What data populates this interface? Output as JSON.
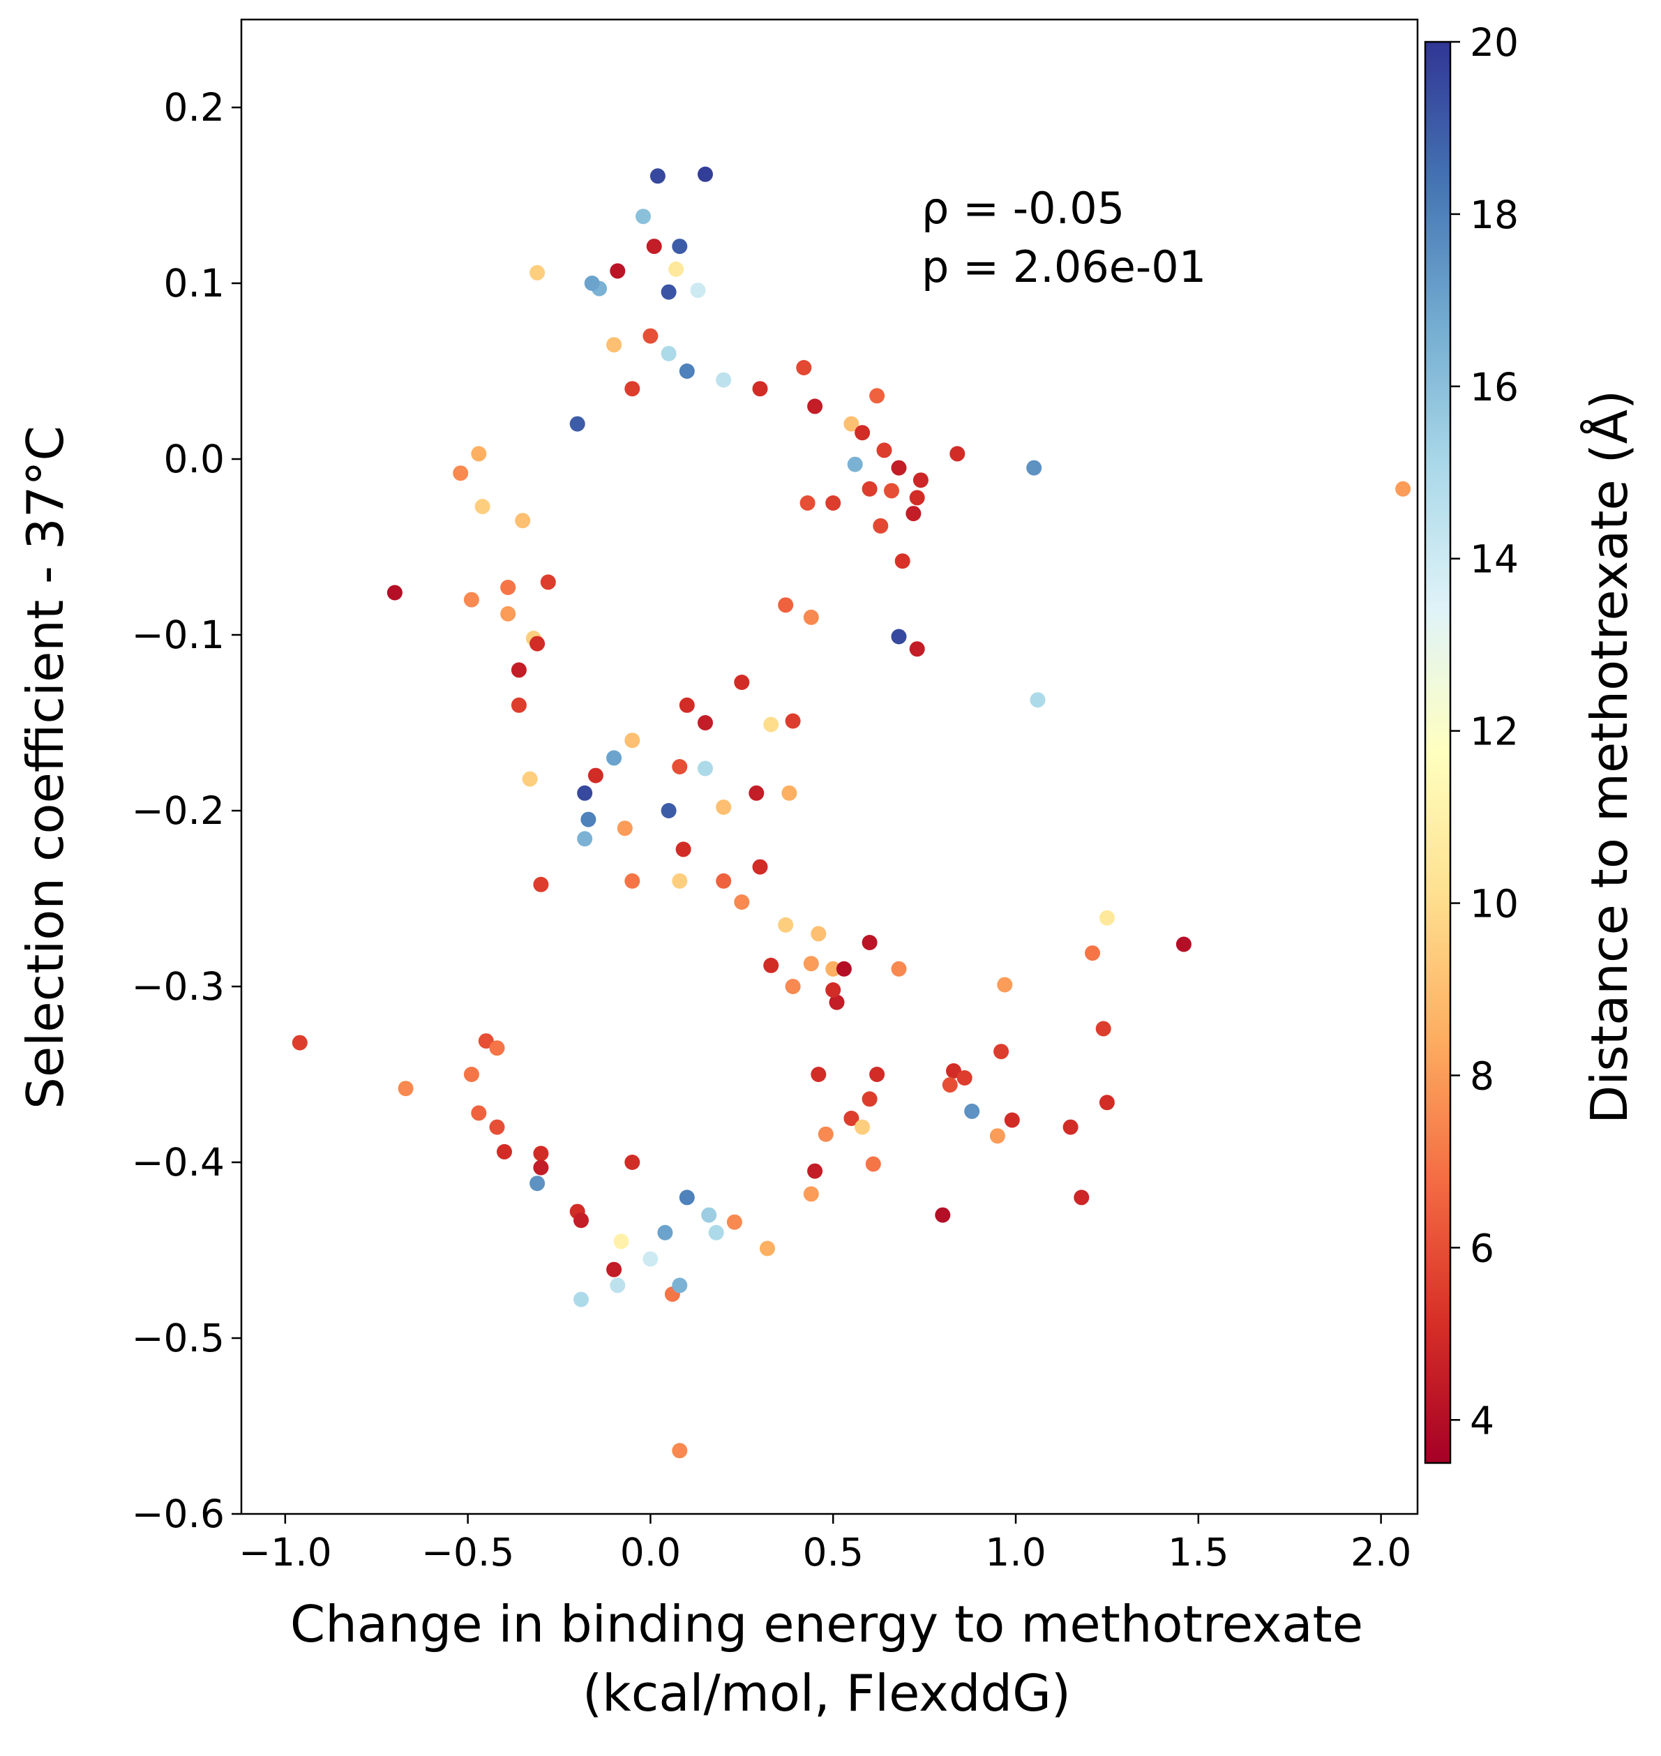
{
  "chart_data": {
    "type": "scatter",
    "xlabel": [
      "Change in binding energy to methotrexate",
      "(kcal/mol, FlexddG)"
    ],
    "ylabel": "Selection coefficient - 37°C",
    "xlim": [
      -1.12,
      2.1
    ],
    "ylim": [
      -0.6,
      0.25
    ],
    "xticks": [
      -1.0,
      -0.5,
      0.0,
      0.5,
      1.0,
      1.5,
      2.0
    ],
    "xtick_labels": [
      "−1.0",
      "−0.5",
      "0.0",
      "0.5",
      "1.0",
      "1.5",
      "2.0"
    ],
    "yticks": [
      -0.6,
      -0.5,
      -0.4,
      -0.3,
      -0.2,
      -0.1,
      0.0,
      0.1,
      0.2
    ],
    "ytick_labels": [
      "−0.6",
      "−0.5",
      "−0.4",
      "−0.3",
      "−0.2",
      "−0.1",
      "0.0",
      "0.1",
      "0.2"
    ],
    "grid": false,
    "annotations": {
      "rho": "ρ = -0.05",
      "p": "p = 2.06e-01"
    },
    "colorbar": {
      "label": "Distance to methotrexate (Å)",
      "colormap": "RdYlBu",
      "range": [
        3.5,
        20
      ],
      "ticks": [
        4,
        6,
        8,
        10,
        12,
        14,
        16,
        18,
        20
      ],
      "tick_labels": [
        "4",
        "6",
        "8",
        "10",
        "12",
        "14",
        "16",
        "18",
        "20"
      ]
    },
    "points": [
      [
        0.02,
        0.161,
        19.5
      ],
      [
        0.15,
        0.162,
        19.8
      ],
      [
        -0.02,
        0.138,
        16.0
      ],
      [
        0.01,
        0.121,
        4.5
      ],
      [
        0.08,
        0.121,
        19.0
      ],
      [
        -0.31,
        0.106,
        9.5
      ],
      [
        -0.09,
        0.107,
        4.2
      ],
      [
        0.07,
        0.108,
        10.5
      ],
      [
        -0.14,
        0.097,
        16.5
      ],
      [
        0.05,
        0.095,
        19.2
      ],
      [
        0.13,
        0.096,
        14.0
      ],
      [
        -0.16,
        0.1,
        17.0
      ],
      [
        0.0,
        0.07,
        6.0
      ],
      [
        0.05,
        0.06,
        15.0
      ],
      [
        -0.1,
        0.065,
        9.0
      ],
      [
        0.1,
        0.05,
        18.0
      ],
      [
        -0.05,
        0.04,
        5.5
      ],
      [
        0.2,
        0.045,
        14.5
      ],
      [
        0.3,
        0.04,
        5.0
      ],
      [
        -0.2,
        0.02,
        19.0
      ],
      [
        0.42,
        0.052,
        5.8
      ],
      [
        0.45,
        0.03,
        4.5
      ],
      [
        0.62,
        0.036,
        6.5
      ],
      [
        0.55,
        0.02,
        9.0
      ],
      [
        0.58,
        0.015,
        5.0
      ],
      [
        0.64,
        0.005,
        5.5
      ],
      [
        0.68,
        -0.005,
        4.5
      ],
      [
        0.56,
        -0.003,
        16.5
      ],
      [
        0.84,
        0.003,
        5.0
      ],
      [
        1.05,
        -0.005,
        17.5
      ],
      [
        2.06,
        -0.017,
        8.0
      ],
      [
        0.74,
        -0.012,
        4.8
      ],
      [
        0.6,
        -0.017,
        5.5
      ],
      [
        0.66,
        -0.018,
        6.0
      ],
      [
        0.73,
        -0.022,
        5.0
      ],
      [
        0.5,
        -0.025,
        5.5
      ],
      [
        0.43,
        -0.025,
        6.0
      ],
      [
        0.72,
        -0.031,
        4.5
      ],
      [
        0.63,
        -0.038,
        5.8
      ],
      [
        0.69,
        -0.058,
        5.2
      ],
      [
        -0.52,
        -0.008,
        7.5
      ],
      [
        -0.47,
        0.003,
        8.5
      ],
      [
        -0.46,
        -0.027,
        9.5
      ],
      [
        -0.35,
        -0.035,
        9.0
      ],
      [
        -0.7,
        -0.076,
        4.0
      ],
      [
        -0.49,
        -0.08,
        7.5
      ],
      [
        -0.39,
        -0.073,
        7.0
      ],
      [
        -0.39,
        -0.088,
        8.0
      ],
      [
        -0.28,
        -0.07,
        5.5
      ],
      [
        -0.32,
        -0.102,
        9.5
      ],
      [
        -0.31,
        -0.105,
        5.0
      ],
      [
        -0.36,
        -0.12,
        4.5
      ],
      [
        -0.36,
        -0.14,
        5.5
      ],
      [
        -0.33,
        -0.182,
        9.5
      ],
      [
        0.68,
        -0.101,
        19.5
      ],
      [
        0.73,
        -0.108,
        4.5
      ],
      [
        1.06,
        -0.137,
        15.0
      ],
      [
        0.37,
        -0.083,
        6.5
      ],
      [
        0.44,
        -0.09,
        7.5
      ],
      [
        0.25,
        -0.127,
        5.0
      ],
      [
        0.33,
        -0.151,
        10.0
      ],
      [
        0.39,
        -0.149,
        5.5
      ],
      [
        0.29,
        -0.19,
        4.5
      ],
      [
        0.38,
        -0.19,
        8.5
      ],
      [
        0.3,
        -0.232,
        5.0
      ],
      [
        0.2,
        -0.198,
        9.0
      ],
      [
        -0.3,
        -0.242,
        5.5
      ],
      [
        0.25,
        -0.252,
        7.5
      ],
      [
        -0.15,
        -0.18,
        5.0
      ],
      [
        -0.18,
        -0.19,
        19.5
      ],
      [
        -0.17,
        -0.205,
        18.0
      ],
      [
        -0.18,
        -0.216,
        16.5
      ],
      [
        -0.1,
        -0.17,
        17.0
      ],
      [
        -0.05,
        -0.16,
        9.0
      ],
      [
        0.1,
        -0.14,
        5.0
      ],
      [
        0.15,
        -0.15,
        4.5
      ],
      [
        0.08,
        -0.175,
        6.0
      ],
      [
        0.15,
        -0.176,
        15.0
      ],
      [
        0.05,
        -0.2,
        19.0
      ],
      [
        -0.07,
        -0.21,
        8.0
      ],
      [
        0.08,
        -0.24,
        9.5
      ],
      [
        0.09,
        -0.222,
        5.0
      ],
      [
        -0.05,
        -0.24,
        7.0
      ],
      [
        0.2,
        -0.24,
        6.5
      ],
      [
        0.6,
        -0.275,
        4.2
      ],
      [
        0.37,
        -0.265,
        9.5
      ],
      [
        0.46,
        -0.27,
        9.0
      ],
      [
        0.33,
        -0.288,
        5.0
      ],
      [
        0.39,
        -0.3,
        7.5
      ],
      [
        0.44,
        -0.287,
        8.0
      ],
      [
        0.5,
        -0.29,
        8.5
      ],
      [
        0.51,
        -0.309,
        4.5
      ],
      [
        0.5,
        -0.302,
        5.0
      ],
      [
        0.53,
        -0.29,
        4.0
      ],
      [
        0.68,
        -0.29,
        7.5
      ],
      [
        0.97,
        -0.299,
        8.0
      ],
      [
        1.25,
        -0.261,
        10.5
      ],
      [
        1.21,
        -0.281,
        7.0
      ],
      [
        1.46,
        -0.276,
        4.0
      ],
      [
        1.24,
        -0.324,
        5.5
      ],
      [
        1.25,
        -0.366,
        5.0
      ],
      [
        1.15,
        -0.38,
        5.0
      ],
      [
        1.18,
        -0.42,
        4.8
      ],
      [
        0.8,
        -0.43,
        4.0
      ],
      [
        0.88,
        -0.371,
        17.5
      ],
      [
        0.83,
        -0.348,
        5.0
      ],
      [
        0.86,
        -0.352,
        5.5
      ],
      [
        0.82,
        -0.356,
        6.0
      ],
      [
        0.96,
        -0.337,
        5.5
      ],
      [
        0.99,
        -0.376,
        5.0
      ],
      [
        0.95,
        -0.385,
        8.0
      ],
      [
        0.62,
        -0.35,
        5.0
      ],
      [
        0.6,
        -0.364,
        5.5
      ],
      [
        0.55,
        -0.375,
        5.5
      ],
      [
        0.58,
        -0.38,
        9.5
      ],
      [
        0.46,
        -0.35,
        5.0
      ],
      [
        0.48,
        -0.384,
        7.5
      ],
      [
        0.45,
        -0.405,
        4.5
      ],
      [
        0.61,
        -0.401,
        7.0
      ],
      [
        0.44,
        -0.418,
        8.0
      ],
      [
        0.32,
        -0.449,
        8.5
      ],
      [
        0.23,
        -0.434,
        7.5
      ],
      [
        -0.96,
        -0.332,
        5.5
      ],
      [
        -0.67,
        -0.358,
        7.5
      ],
      [
        -0.49,
        -0.35,
        7.0
      ],
      [
        -0.45,
        -0.331,
        6.0
      ],
      [
        -0.42,
        -0.335,
        7.0
      ],
      [
        -0.47,
        -0.372,
        6.5
      ],
      [
        -0.42,
        -0.38,
        6.0
      ],
      [
        -0.4,
        -0.394,
        5.0
      ],
      [
        -0.31,
        -0.412,
        17.5
      ],
      [
        -0.3,
        -0.395,
        5.0
      ],
      [
        -0.3,
        -0.403,
        4.5
      ],
      [
        -0.2,
        -0.428,
        5.0
      ],
      [
        -0.19,
        -0.433,
        4.5
      ],
      [
        -0.1,
        -0.461,
        4.5
      ],
      [
        -0.19,
        -0.478,
        15.0
      ],
      [
        -0.09,
        -0.47,
        14.5
      ],
      [
        -0.08,
        -0.445,
        11.0
      ],
      [
        0.0,
        -0.455,
        14.0
      ],
      [
        0.06,
        -0.475,
        7.0
      ],
      [
        0.08,
        -0.47,
        16.5
      ],
      [
        0.08,
        -0.564,
        7.5
      ],
      [
        0.18,
        -0.44,
        15.0
      ],
      [
        0.1,
        -0.42,
        18.0
      ],
      [
        0.16,
        -0.43,
        15.5
      ],
      [
        0.04,
        -0.44,
        17.0
      ],
      [
        -0.05,
        -0.4,
        5.0
      ]
    ]
  }
}
